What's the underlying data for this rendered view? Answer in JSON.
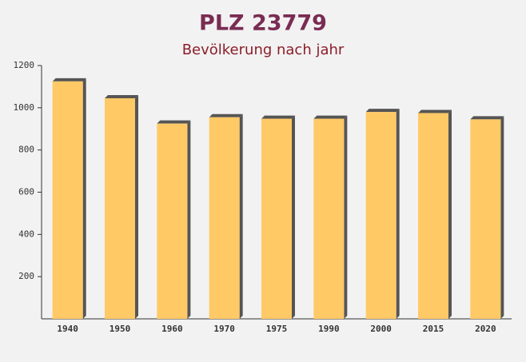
{
  "chart_data": {
    "type": "bar",
    "title": "PLZ 23779",
    "subtitle": "Bevölkerung nach jahr",
    "categories": [
      "1940",
      "1950",
      "1960",
      "1970",
      "1975",
      "1990",
      "2000",
      "2015",
      "2020"
    ],
    "values": [
      1125,
      1045,
      925,
      955,
      948,
      948,
      980,
      975,
      945
    ],
    "color": "#ffc966",
    "ylim": [
      0,
      1200
    ],
    "yticks": [
      200,
      400,
      600,
      800,
      1000,
      1200
    ]
  }
}
